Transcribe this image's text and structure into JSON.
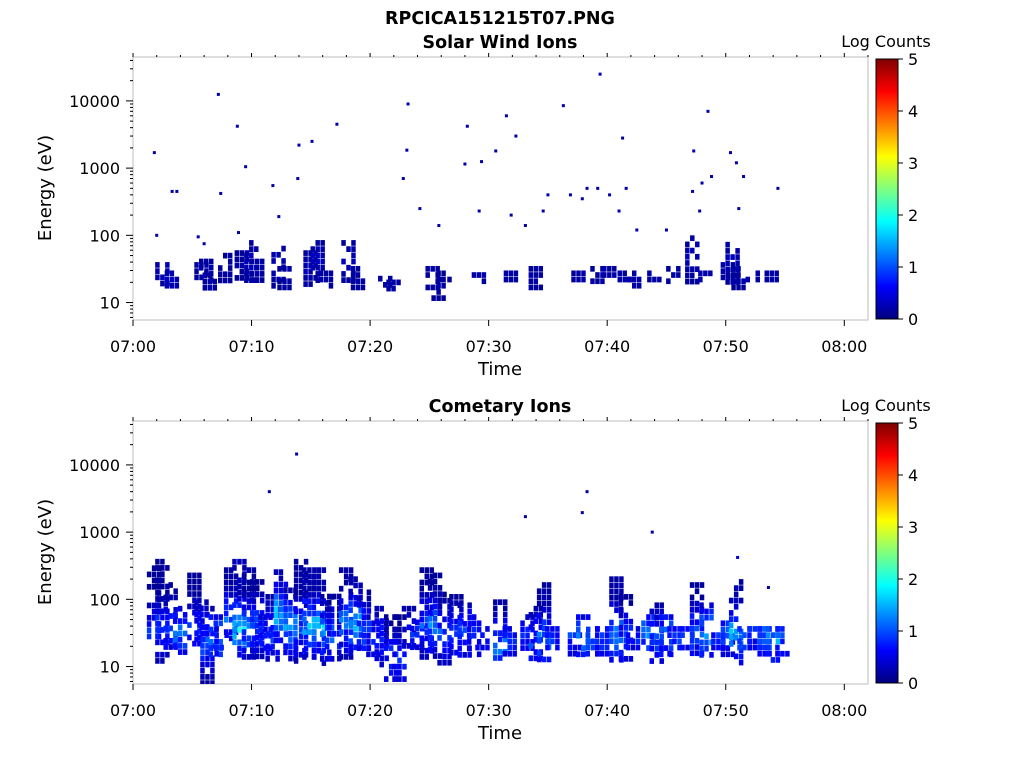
{
  "figure": {
    "title": "RPCICA151215T07.PNG"
  },
  "colormap": [
    "#00007f",
    "#0000ff",
    "#007fff",
    "#00ffff",
    "#7fff7f",
    "#ffff00",
    "#ff7f00",
    "#ff0000",
    "#7f0000"
  ],
  "chart_data": [
    {
      "type": "heatmap",
      "title": "Solar Wind Ions",
      "xlabel": "Time",
      "ylabel": "Energy (eV)",
      "colorbar_label": "Log Counts",
      "x_ticks": [
        "07:00",
        "07:10",
        "07:20",
        "07:30",
        "07:40",
        "07:50",
        "08:00"
      ],
      "y_ticks": [
        "10",
        "100",
        "1000",
        "10000"
      ],
      "colorbar_ticks": [
        "0",
        "1",
        "2",
        "3",
        "4",
        "5"
      ],
      "xlim_minutes": [
        0,
        62
      ],
      "ylim_eV": [
        5.5,
        45000
      ],
      "y_scale": "log",
      "clim": [
        0,
        5
      ],
      "points": [
        [
          1.8,
          1700,
          0.2
        ],
        [
          2.0,
          100,
          0.2
        ],
        [
          3.3,
          450,
          0.2
        ],
        [
          3.7,
          450,
          0.2
        ],
        [
          5.5,
          95,
          0.2
        ],
        [
          6.0,
          75,
          0.2
        ],
        [
          7.2,
          12500,
          0.2
        ],
        [
          7.4,
          420,
          0.2
        ],
        [
          8.8,
          4200,
          0.2
        ],
        [
          8.9,
          110,
          0.2
        ],
        [
          9.5,
          1050,
          0.2
        ],
        [
          11.8,
          550,
          0.2
        ],
        [
          12.3,
          190,
          0.2
        ],
        [
          13.9,
          700,
          0.2
        ],
        [
          14.0,
          2200,
          0.2
        ],
        [
          15.1,
          2500,
          0.2
        ],
        [
          17.2,
          4500,
          0.2
        ],
        [
          22.8,
          700,
          0.2
        ],
        [
          23.1,
          1850,
          0.2
        ],
        [
          23.2,
          9000,
          0.2
        ],
        [
          24.2,
          250,
          0.2
        ],
        [
          25.8,
          140,
          0.2
        ],
        [
          28.0,
          1150,
          0.2
        ],
        [
          28.2,
          4200,
          0.2
        ],
        [
          29.2,
          230,
          0.2
        ],
        [
          29.4,
          1250,
          0.2
        ],
        [
          30.6,
          1800,
          0.2
        ],
        [
          31.5,
          6000,
          0.2
        ],
        [
          31.9,
          200,
          0.2
        ],
        [
          32.3,
          3000,
          0.2
        ],
        [
          33.1,
          140,
          0.2
        ],
        [
          34.6,
          230,
          0.2
        ],
        [
          35.0,
          400,
          0.2
        ],
        [
          36.3,
          8500,
          0.2
        ],
        [
          36.9,
          400,
          0.2
        ],
        [
          37.9,
          350,
          0.2
        ],
        [
          38.3,
          500,
          0.2
        ],
        [
          39.2,
          500,
          0.2
        ],
        [
          39.4,
          25000,
          0.2
        ],
        [
          40.2,
          400,
          0.2
        ],
        [
          41.0,
          230,
          0.2
        ],
        [
          41.3,
          2800,
          0.2
        ],
        [
          41.6,
          500,
          0.2
        ],
        [
          42.5,
          120,
          0.2
        ],
        [
          45.0,
          120,
          0.2
        ],
        [
          47.2,
          450,
          0.2
        ],
        [
          47.3,
          1800,
          0.2
        ],
        [
          47.8,
          230,
          0.2
        ],
        [
          48.0,
          600,
          0.2
        ],
        [
          48.5,
          7000,
          0.2
        ],
        [
          48.8,
          750,
          0.2
        ],
        [
          50.4,
          1700,
          0.2
        ],
        [
          50.9,
          1200,
          0.2
        ],
        [
          51.1,
          250,
          0.2
        ],
        [
          51.5,
          750,
          0.2
        ],
        [
          54.4,
          500,
          0.2
        ]
      ],
      "columns": [
        [
          2.5,
          18,
          40,
          0.3
        ],
        [
          3.3,
          18,
          30,
          0.3
        ],
        [
          5.8,
          25,
          40,
          0.2
        ],
        [
          6.2,
          22,
          45,
          0.2
        ],
        [
          6.5,
          17,
          28,
          0.2
        ],
        [
          7.8,
          22,
          55,
          0.2
        ],
        [
          9.2,
          22,
          60,
          0.2
        ],
        [
          10.0,
          20,
          85,
          0.3
        ],
        [
          10.5,
          22,
          45,
          0.2
        ],
        [
          12.3,
          17,
          70,
          0.3
        ],
        [
          12.8,
          18,
          35,
          0.2
        ],
        [
          15.0,
          18,
          60,
          0.3
        ],
        [
          15.6,
          20,
          85,
          0.3
        ],
        [
          16.3,
          18,
          30,
          0.2
        ],
        [
          18.2,
          22,
          85,
          0.3
        ],
        [
          19.0,
          18,
          35,
          0.2
        ],
        [
          21.3,
          18,
          25,
          0.2
        ],
        [
          22.0,
          17,
          22,
          0.2
        ],
        [
          25.3,
          17,
          35,
          0.2
        ],
        [
          25.8,
          12,
          30,
          0.2
        ],
        [
          26.3,
          20,
          30,
          0.2
        ],
        [
          29.2,
          22,
          35,
          0.2
        ],
        [
          31.9,
          20,
          30,
          0.2
        ],
        [
          34.0,
          16,
          35,
          0.2
        ],
        [
          37.6,
          20,
          30,
          0.2
        ],
        [
          39.2,
          20,
          35,
          0.2
        ],
        [
          40.2,
          22,
          35,
          0.2
        ],
        [
          41.5,
          20,
          30,
          0.2
        ],
        [
          42.3,
          18,
          30,
          0.2
        ],
        [
          44.0,
          22,
          30,
          0.2
        ],
        [
          45.6,
          22,
          35,
          0.2
        ],
        [
          47.2,
          22,
          100,
          0.3
        ],
        [
          48.3,
          22,
          30,
          0.2
        ],
        [
          50.2,
          22,
          40,
          0.2
        ],
        [
          50.6,
          20,
          80,
          0.3
        ],
        [
          51.1,
          18,
          35,
          0.2
        ],
        [
          52.3,
          20,
          30,
          0.2
        ],
        [
          53.9,
          20,
          30,
          0.2
        ]
      ]
    },
    {
      "type": "heatmap",
      "title": "Cometary Ions",
      "xlabel": "Time",
      "ylabel": "Energy (eV)",
      "colorbar_label": "Log Counts",
      "x_ticks": [
        "07:00",
        "07:10",
        "07:20",
        "07:30",
        "07:40",
        "07:50",
        "08:00"
      ],
      "y_ticks": [
        "10",
        "100",
        "1000",
        "10000"
      ],
      "colorbar_ticks": [
        "0",
        "1",
        "2",
        "3",
        "4",
        "5"
      ],
      "xlim_minutes": [
        0,
        62
      ],
      "ylim_eV": [
        5.5,
        45000
      ],
      "y_scale": "log",
      "clim": [
        0,
        5
      ],
      "points": [
        [
          11.5,
          4000,
          0.2
        ],
        [
          13.8,
          14500,
          0.2
        ],
        [
          33.1,
          1700,
          0.2
        ],
        [
          37.9,
          1950,
          0.2
        ],
        [
          38.3,
          4000,
          0.2
        ],
        [
          43.8,
          1000,
          0.2
        ],
        [
          51.0,
          420,
          0.5
        ],
        [
          53.6,
          150,
          0.2
        ]
      ],
      "columns": [
        [
          1.8,
          30,
          320,
          0.9,
          35
        ],
        [
          2.5,
          12,
          400,
          1.0,
          35
        ],
        [
          3.2,
          12,
          180,
          0.9,
          35
        ],
        [
          4.0,
          15,
          80,
          1.2,
          30
        ],
        [
          5.2,
          20,
          250,
          0.9,
          35
        ],
        [
          5.8,
          25,
          100,
          0.8,
          35
        ],
        [
          6.3,
          6,
          80,
          1.1,
          22
        ],
        [
          7.0,
          14,
          60,
          1.3,
          25
        ],
        [
          7.5,
          14,
          40,
          0.8,
          25
        ],
        [
          8.3,
          25,
          300,
          1.1,
          50
        ],
        [
          9.0,
          15,
          400,
          1.8,
          35
        ],
        [
          9.8,
          14,
          300,
          1.2,
          35
        ],
        [
          10.5,
          14,
          200,
          1.0,
          40
        ],
        [
          11.2,
          20,
          60,
          0.8,
          30
        ],
        [
          11.8,
          14,
          120,
          1.0,
          30
        ],
        [
          12.5,
          20,
          280,
          1.6,
          60
        ],
        [
          13.3,
          14,
          150,
          1.4,
          40
        ],
        [
          14.2,
          12,
          400,
          1.0,
          35
        ],
        [
          14.9,
          14,
          300,
          1.5,
          40
        ],
        [
          15.7,
          12,
          300,
          1.6,
          40
        ],
        [
          16.4,
          14,
          120,
          1.2,
          30
        ],
        [
          17.0,
          12,
          150,
          0.8,
          25
        ],
        [
          18.0,
          15,
          300,
          1.2,
          45
        ],
        [
          18.8,
          15,
          220,
          1.5,
          40
        ],
        [
          19.5,
          17,
          140,
          1.1,
          35
        ],
        [
          20.3,
          15,
          60,
          0.7,
          25
        ],
        [
          21.0,
          10,
          80,
          0.9,
          25
        ],
        [
          21.8,
          6,
          60,
          1.0,
          12
        ],
        [
          22.5,
          6,
          60,
          0.8,
          12
        ],
        [
          23.3,
          20,
          80,
          0.6,
          30
        ],
        [
          24.0,
          20,
          50,
          0.8,
          30
        ],
        [
          24.8,
          15,
          300,
          1.0,
          40
        ],
        [
          25.5,
          15,
          250,
          1.2,
          40
        ],
        [
          26.3,
          12,
          130,
          0.9,
          30
        ],
        [
          27.3,
          15,
          120,
          0.9,
          30
        ],
        [
          28.0,
          15,
          90,
          1.1,
          30
        ],
        [
          28.8,
          15,
          60,
          0.8,
          30
        ],
        [
          29.5,
          18,
          40,
          0.7,
          25
        ],
        [
          31.0,
          12,
          100,
          1.2,
          20
        ],
        [
          31.8,
          14,
          40,
          0.9,
          22
        ],
        [
          33.3,
          18,
          60,
          0.8,
          30
        ],
        [
          34.0,
          14,
          80,
          1.0,
          22
        ],
        [
          34.7,
          12,
          180,
          1.3,
          25
        ],
        [
          35.4,
          20,
          40,
          0.8,
          25
        ],
        [
          37.3,
          17,
          40,
          0.9,
          30
        ],
        [
          38.0,
          16,
          60,
          1.2,
          25
        ],
        [
          38.8,
          15,
          40,
          1.0,
          25
        ],
        [
          39.6,
          16,
          40,
          0.9,
          25
        ],
        [
          40.8,
          13,
          220,
          1.3,
          30
        ],
        [
          41.6,
          12,
          120,
          1.0,
          25
        ],
        [
          42.2,
          20,
          40,
          0.8,
          25
        ],
        [
          43.5,
          20,
          60,
          1.2,
          30
        ],
        [
          44.2,
          12,
          90,
          1.0,
          25
        ],
        [
          45.0,
          14,
          60,
          1.2,
          30
        ],
        [
          45.7,
          17,
          40,
          0.9,
          25
        ],
        [
          46.8,
          18,
          40,
          0.8,
          30
        ],
        [
          47.6,
          15,
          180,
          1.1,
          30
        ],
        [
          48.4,
          16,
          90,
          1.5,
          30
        ],
        [
          49.4,
          20,
          40,
          0.8,
          30
        ],
        [
          50.2,
          15,
          60,
          1.1,
          30
        ],
        [
          50.9,
          12,
          200,
          1.5,
          30
        ],
        [
          51.6,
          20,
          40,
          1.0,
          25
        ],
        [
          52.5,
          18,
          40,
          0.8,
          30
        ],
        [
          53.3,
          15,
          40,
          1.3,
          25
        ],
        [
          54.0,
          13,
          40,
          1.4,
          25
        ],
        [
          54.8,
          15,
          40,
          1.1,
          30
        ]
      ]
    }
  ]
}
